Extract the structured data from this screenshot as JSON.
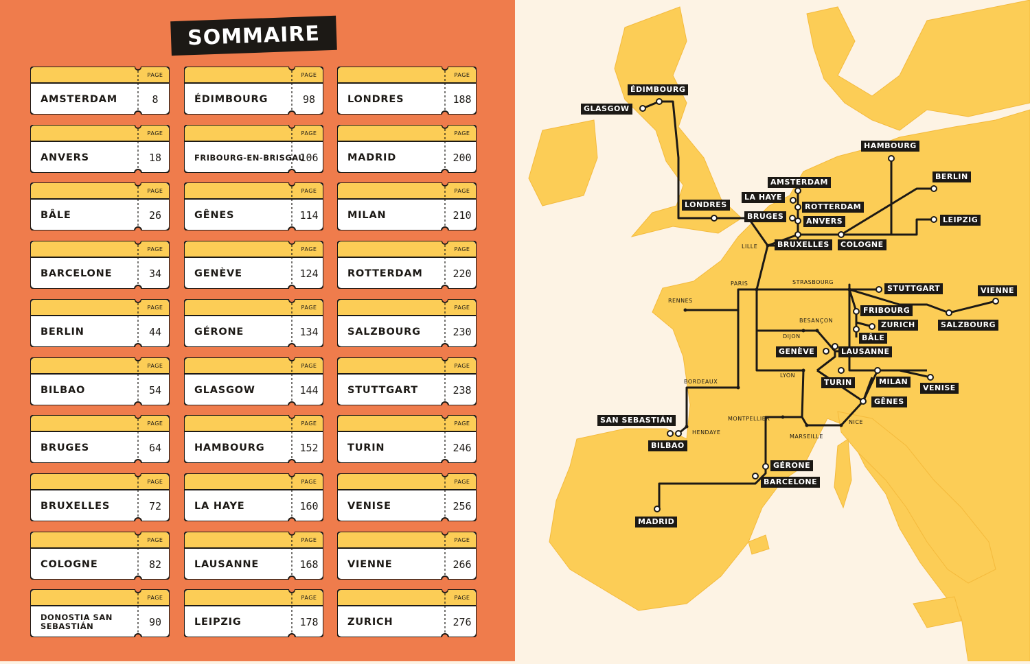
{
  "title": "SOMMAIRE",
  "page_label": "PAGE",
  "toc": [
    {
      "city": "AMSTERDAM",
      "page": "8"
    },
    {
      "city": "ANVERS",
      "page": "18"
    },
    {
      "city": "BÂLE",
      "page": "26"
    },
    {
      "city": "BARCELONE",
      "page": "34"
    },
    {
      "city": "BERLIN",
      "page": "44"
    },
    {
      "city": "BILBAO",
      "page": "54"
    },
    {
      "city": "BRUGES",
      "page": "64"
    },
    {
      "city": "BRUXELLES",
      "page": "72"
    },
    {
      "city": "COLOGNE",
      "page": "82"
    },
    {
      "city": "DONOSTIA SAN SEBASTIÁN",
      "page": "90"
    },
    {
      "city": "ÉDIMBOURG",
      "page": "98"
    },
    {
      "city": "FRIBOURG-EN-BRISGAU",
      "page": "106"
    },
    {
      "city": "GÊNES",
      "page": "114"
    },
    {
      "city": "GENÈVE",
      "page": "124"
    },
    {
      "city": "GÉRONE",
      "page": "134"
    },
    {
      "city": "GLASGOW",
      "page": "144"
    },
    {
      "city": "HAMBOURG",
      "page": "152"
    },
    {
      "city": "LA HAYE",
      "page": "160"
    },
    {
      "city": "LAUSANNE",
      "page": "168"
    },
    {
      "city": "LEIPZIG",
      "page": "178"
    },
    {
      "city": "LONDRES",
      "page": "188"
    },
    {
      "city": "MADRID",
      "page": "200"
    },
    {
      "city": "MILAN",
      "page": "210"
    },
    {
      "city": "ROTTERDAM",
      "page": "220"
    },
    {
      "city": "SALZBOURG",
      "page": "230"
    },
    {
      "city": "STUTTGART",
      "page": "238"
    },
    {
      "city": "TURIN",
      "page": "246"
    },
    {
      "city": "VENISE",
      "page": "256"
    },
    {
      "city": "VIENNE",
      "page": "266"
    },
    {
      "city": "ZURICH",
      "page": "276"
    }
  ],
  "map": {
    "destinations": [
      "ÉDIMBOURG",
      "GLASGOW",
      "HAMBOURG",
      "BERLIN",
      "AMSTERDAM",
      "LA HAYE",
      "ROTTERDAM",
      "BRUGES",
      "ANVERS",
      "LONDRES",
      "LEIPZIG",
      "BRUXELLES",
      "COLOGNE",
      "STUTTGART",
      "VIENNE",
      "FRIBOURG",
      "ZURICH",
      "SALZBOURG",
      "BÂLE",
      "GENÈVE",
      "LAUSANNE",
      "TURIN",
      "MILAN",
      "VENISE",
      "GÊNES",
      "SAN SEBASTIÁN",
      "BILBAO",
      "GÉRONE",
      "BARCELONE",
      "MADRID"
    ],
    "stops": [
      "LILLE",
      "PARIS",
      "STRASBOURG",
      "RENNES",
      "BESANÇON",
      "DIJON",
      "LYON",
      "BORDEAUX",
      "MONTPELLIER",
      "HENDAYE",
      "NICE",
      "MARSEILLE"
    ]
  },
  "colors": {
    "left_bg": "#ef7c4c",
    "ticket_head": "#fccd56",
    "ink": "#1c1915",
    "land": "#fccd56",
    "sea": "#fdf3e4"
  }
}
